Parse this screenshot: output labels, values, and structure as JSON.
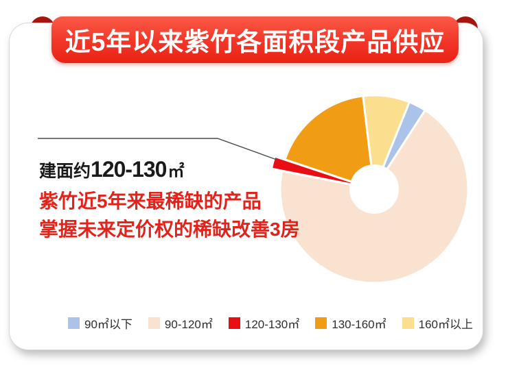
{
  "banner": {
    "title": "近5年以来紫竹各面积段产品供应"
  },
  "callout": {
    "label_prefix": "建面约",
    "label_range": "120-130",
    "label_unit": "㎡",
    "highlight_line1": "紫竹近5年来最稀缺的产品",
    "highlight_line2": "掌握未来定价权的稀缺改善3房"
  },
  "chart_data": {
    "type": "pie",
    "title": "近5年以来紫竹各面积段产品供应",
    "labels": [
      "90㎡以下",
      "90-120㎡",
      "120-130㎡",
      "130-160㎡",
      "160㎡以上"
    ],
    "values": [
      3,
      69,
      2,
      18,
      8
    ],
    "unit": "%",
    "colors": [
      "#ABC3E8",
      "#F9E3D0",
      "#E90E13",
      "#F09C15",
      "#FBDF8F"
    ],
    "start_angle_deg": 22,
    "clockwise": true,
    "donut": true,
    "donut_hole_ratio": 0.26,
    "exploded_index": 2,
    "exploded_label": "120-130㎡",
    "legend_position": "bottom",
    "data_labels_shown": false
  },
  "theme": {
    "banner_gradient_top": "#FB5A47",
    "banner_gradient_bottom": "#E82315",
    "ribbon_fold_red": "#A8140E",
    "card_background": "#FFFFFF",
    "card_border": "#D8D8D8",
    "area_label_text": "#1A1A1A",
    "highlight_text_red": "#E2231C",
    "callout_line_color": "#4A4A4A",
    "legend_text": "#2E2E2E"
  }
}
